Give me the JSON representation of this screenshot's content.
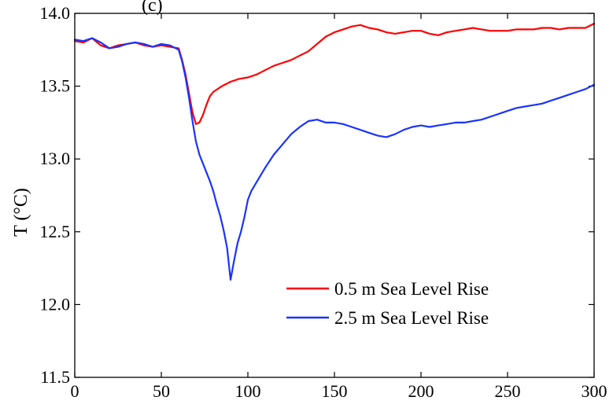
{
  "chart_data": {
    "type": "line",
    "title_partial": "(c)",
    "xlabel": "",
    "ylabel": "T (°C)",
    "xlim": [
      0,
      300
    ],
    "ylim": [
      11.5,
      14.0
    ],
    "x_ticks": [
      0,
      50,
      100,
      150,
      200,
      250,
      300
    ],
    "x_tick_labels": [
      "0",
      "50",
      "100",
      "150",
      "200",
      "250",
      "300"
    ],
    "y_ticks": [
      11.5,
      12.0,
      12.5,
      13.0,
      13.5,
      14.0
    ],
    "y_tick_labels": [
      "11.5",
      "12.0",
      "12.5",
      "13.0",
      "13.5",
      "14.0"
    ],
    "grid": false,
    "legend_position": "bottom-right",
    "series": [
      {
        "name": "0.5 m Sea Level Rise",
        "color": "#ff0000",
        "x": [
          0,
          5,
          10,
          15,
          20,
          25,
          30,
          35,
          40,
          45,
          50,
          55,
          60,
          62,
          64,
          66,
          68,
          70,
          72,
          74,
          76,
          78,
          80,
          85,
          90,
          95,
          100,
          105,
          110,
          115,
          120,
          125,
          130,
          135,
          140,
          145,
          150,
          155,
          160,
          165,
          170,
          175,
          180,
          185,
          190,
          195,
          200,
          205,
          210,
          215,
          220,
          225,
          230,
          235,
          240,
          245,
          250,
          255,
          260,
          265,
          270,
          275,
          280,
          285,
          290,
          295,
          300
        ],
        "y": [
          13.81,
          13.8,
          13.83,
          13.78,
          13.76,
          13.78,
          13.79,
          13.8,
          13.78,
          13.77,
          13.78,
          13.77,
          13.76,
          13.68,
          13.58,
          13.45,
          13.32,
          13.24,
          13.25,
          13.3,
          13.37,
          13.43,
          13.46,
          13.5,
          13.53,
          13.55,
          13.56,
          13.58,
          13.61,
          13.64,
          13.66,
          13.68,
          13.71,
          13.74,
          13.79,
          13.84,
          13.87,
          13.89,
          13.91,
          13.92,
          13.9,
          13.89,
          13.87,
          13.86,
          13.87,
          13.88,
          13.88,
          13.86,
          13.85,
          13.87,
          13.88,
          13.89,
          13.9,
          13.89,
          13.88,
          13.88,
          13.88,
          13.89,
          13.89,
          13.89,
          13.9,
          13.9,
          13.89,
          13.9,
          13.9,
          13.9,
          13.93
        ]
      },
      {
        "name": "2.5 m Sea Level Rise",
        "color": "#1a33ff",
        "x": [
          0,
          5,
          10,
          15,
          20,
          25,
          30,
          35,
          40,
          45,
          50,
          55,
          60,
          62,
          64,
          66,
          68,
          70,
          72,
          75,
          78,
          80,
          82,
          84,
          86,
          88,
          90,
          92,
          94,
          96,
          98,
          100,
          102,
          105,
          110,
          115,
          120,
          125,
          130,
          135,
          140,
          145,
          150,
          155,
          160,
          165,
          170,
          175,
          180,
          185,
          190,
          195,
          200,
          205,
          210,
          215,
          220,
          225,
          230,
          235,
          240,
          245,
          250,
          255,
          260,
          265,
          270,
          275,
          280,
          285,
          290,
          295,
          300
        ],
        "y": [
          13.82,
          13.81,
          13.83,
          13.8,
          13.76,
          13.77,
          13.79,
          13.8,
          13.79,
          13.77,
          13.79,
          13.78,
          13.75,
          13.67,
          13.56,
          13.42,
          13.26,
          13.12,
          13.03,
          12.94,
          12.85,
          12.78,
          12.69,
          12.61,
          12.51,
          12.39,
          12.17,
          12.3,
          12.42,
          12.5,
          12.6,
          12.72,
          12.78,
          12.84,
          12.94,
          13.03,
          13.1,
          13.17,
          13.22,
          13.26,
          13.27,
          13.25,
          13.25,
          13.24,
          13.22,
          13.2,
          13.18,
          13.16,
          13.15,
          13.17,
          13.2,
          13.22,
          13.23,
          13.22,
          13.23,
          13.24,
          13.25,
          13.25,
          13.26,
          13.27,
          13.29,
          13.31,
          13.33,
          13.35,
          13.36,
          13.37,
          13.38,
          13.4,
          13.42,
          13.44,
          13.46,
          13.48,
          13.51
        ]
      }
    ]
  }
}
